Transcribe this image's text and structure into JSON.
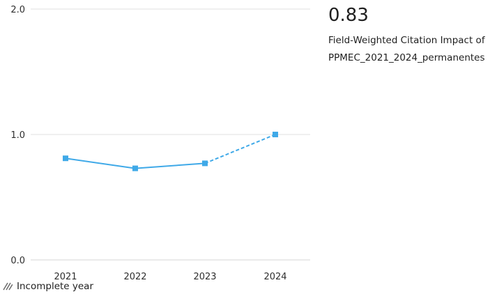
{
  "summary": {
    "value": "0.83",
    "description": "Field-Weighted Citation Impact of PPMEC_2021_2024_permanentes"
  },
  "legend": {
    "incomplete_label": "Incomplete year",
    "icon": "hatch-icon"
  },
  "colors": {
    "series": "#3fa9e8",
    "grid": "#e0e0e0",
    "axis": "#d6d6d6"
  },
  "chart_data": {
    "type": "line",
    "title": "",
    "xlabel": "",
    "ylabel": "",
    "categories": [
      "2021",
      "2022",
      "2023",
      "2024"
    ],
    "series": [
      {
        "values": [
          0.81,
          0.73,
          0.77,
          1.0
        ],
        "incomplete_from_index": 2
      }
    ],
    "yticks": [
      "0.0",
      "1.0",
      "2.0"
    ],
    "ylim": [
      0,
      2
    ],
    "grid": true
  }
}
